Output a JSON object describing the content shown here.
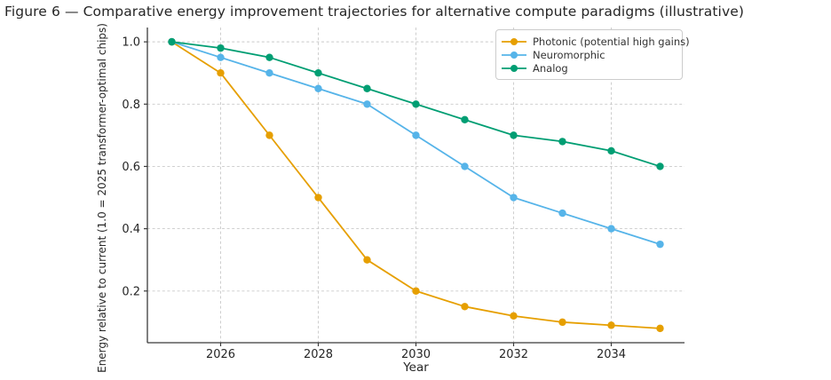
{
  "figure": {
    "title": "Figure 6 — Comparative energy improvement trajectories for alternative compute paradigms (illustrative)"
  },
  "chart_data": {
    "type": "line",
    "title": "Figure 6 — Comparative energy improvement trajectories for alternative compute paradigms (illustrative)",
    "xlabel": "Year",
    "ylabel": "Energy relative to current (1.0 = 2025 transformer-optimal chips)",
    "x": [
      2025,
      2026,
      2027,
      2028,
      2029,
      2030,
      2031,
      2032,
      2033,
      2034,
      2035
    ],
    "series": [
      {
        "name": "Photonic (potential high gains)",
        "color": "#E69F00",
        "values": [
          1.0,
          0.9,
          0.7,
          0.5,
          0.3,
          0.2,
          0.15,
          0.12,
          0.1,
          0.09,
          0.08
        ]
      },
      {
        "name": "Neuromorphic",
        "color": "#56B4E9",
        "values": [
          1.0,
          0.95,
          0.9,
          0.85,
          0.8,
          0.7,
          0.6,
          0.5,
          0.45,
          0.4,
          0.35
        ]
      },
      {
        "name": "Analog",
        "color": "#009E73",
        "values": [
          1.0,
          0.98,
          0.95,
          0.9,
          0.85,
          0.8,
          0.75,
          0.7,
          0.68,
          0.65,
          0.6
        ]
      }
    ],
    "xticks": [
      2026,
      2028,
      2030,
      2032,
      2034
    ],
    "xtick_labels": [
      "2026",
      "2028",
      "2030",
      "2032",
      "2034"
    ],
    "yticks": [
      0.2,
      0.4,
      0.6,
      0.8,
      1.0
    ],
    "ytick_labels": [
      "0.2",
      "0.4",
      "0.6",
      "0.8",
      "1.0"
    ],
    "xlim": [
      2024.5,
      2035.5
    ],
    "ylim": [
      0.034,
      1.046
    ],
    "grid": "dashed",
    "legend_position": "upper right",
    "marker": "circle"
  },
  "style": {
    "background": "#ffffff",
    "grid_color": "#c9c9c9",
    "spine_color": "#3b3b3b",
    "tick_text_color": "#262626",
    "title_color": "#262626",
    "legend_border_color": "#cccccc"
  }
}
